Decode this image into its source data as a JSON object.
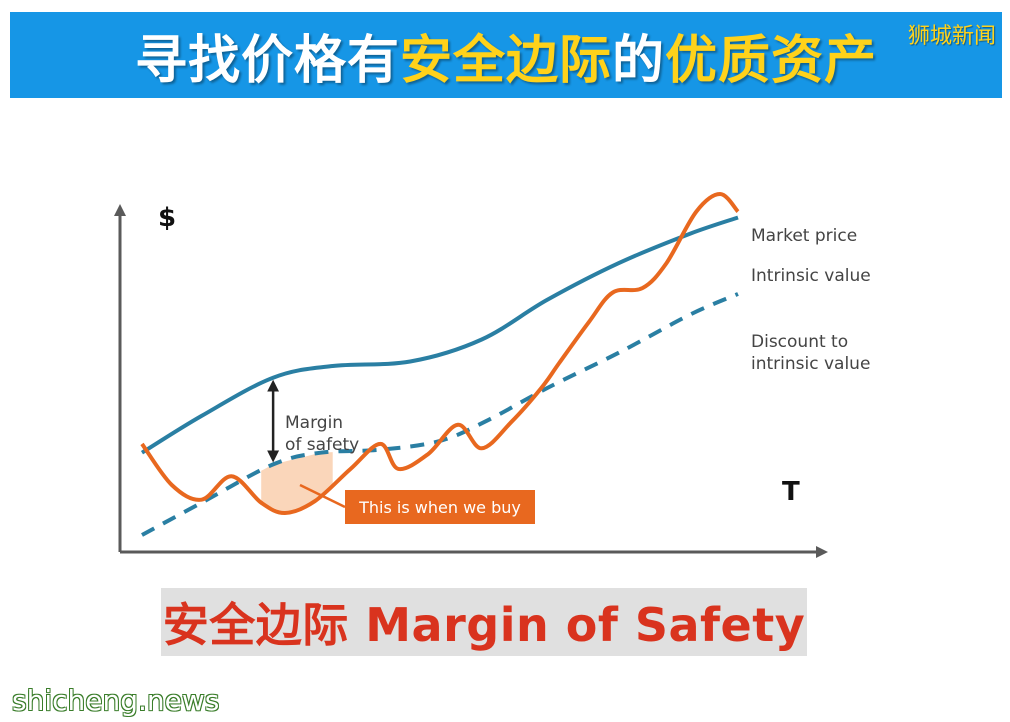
{
  "header": {
    "title_part1": "寻找价格有",
    "title_highlight": "安全边际",
    "title_part2": "的",
    "title_part3": "优质资产",
    "watermark": "狮城新闻"
  },
  "chart_data": {
    "type": "line",
    "y_axis_label": "$",
    "x_axis_label": "T",
    "series": [
      {
        "name": "Market price",
        "color": "#e8681f",
        "style": "solid",
        "x": [
          0,
          5,
          10,
          15,
          20,
          24,
          29,
          35,
          40,
          43,
          48,
          53,
          57,
          62,
          67,
          70,
          75,
          79,
          84,
          88,
          93,
          97,
          100
        ],
        "y": [
          62,
          34,
          24,
          40,
          22,
          15,
          23,
          45,
          62,
          45,
          55,
          75,
          59,
          77,
          100,
          117,
          145,
          165,
          168,
          185,
          220,
          232,
          220
        ]
      },
      {
        "name": "Intrinsic value",
        "color": "#2a7fa3",
        "style": "solid",
        "x": [
          0,
          10,
          22,
          32,
          45,
          57,
          68,
          80,
          92,
          100
        ],
        "y": [
          56,
          81,
          107,
          115,
          118,
          133,
          160,
          185,
          205,
          216
        ]
      },
      {
        "name": "Discount to intrinsic value",
        "color": "#2a7fa3",
        "style": "dashed",
        "x": [
          0,
          10,
          22,
          30,
          40,
          50,
          58,
          68,
          80,
          92,
          100
        ],
        "y": [
          0,
          22,
          48,
          56,
          58,
          64,
          78,
          100,
          124,
          150,
          164
        ]
      }
    ],
    "annotations": [
      {
        "text": "Margin of safety",
        "type": "double-arrow",
        "x": 22,
        "y_top": 107,
        "y_bottom": 48
      },
      {
        "text": "This is when we buy",
        "type": "callout",
        "color": "#e8681f"
      }
    ]
  },
  "caption": "安全边际 Margin of Safety",
  "site_watermark": "shicheng.news"
}
